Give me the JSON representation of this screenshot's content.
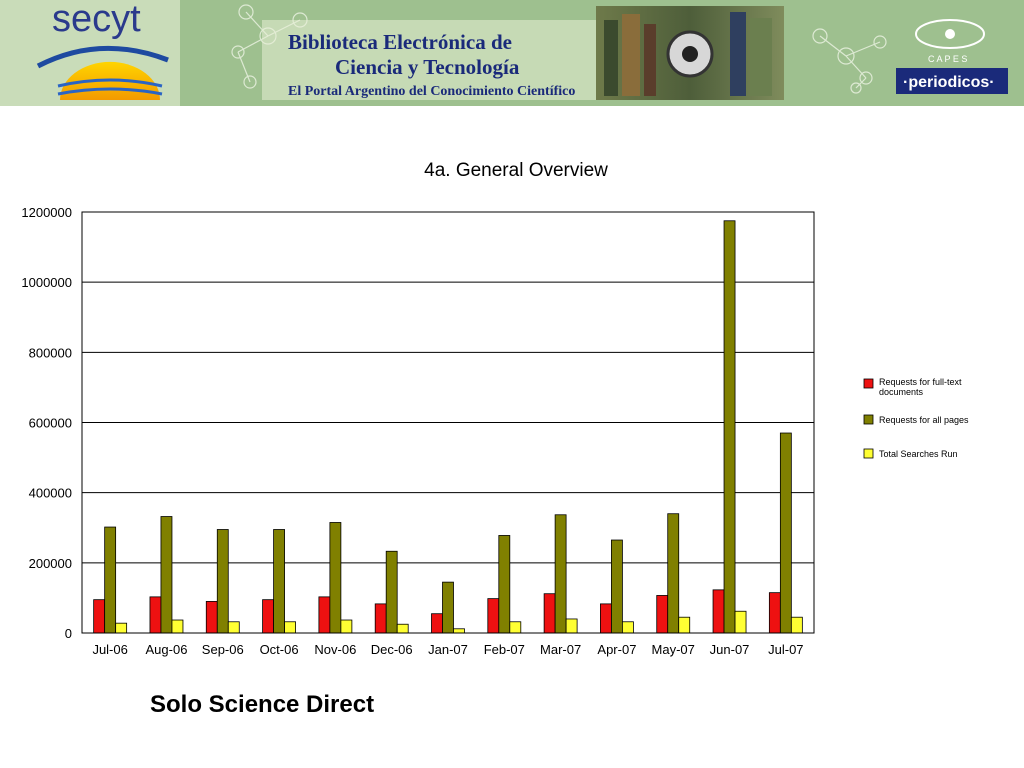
{
  "banner": {
    "logo_text": "secyt",
    "title_line1": "Biblioteca Electrónica de",
    "title_line2": "Ciencia y Tecnología",
    "subtitle": "El Portal Argentino del Conocimiento Científico",
    "capes_label": "C A P E S",
    "periodicos_label": "·periodicos·"
  },
  "caption": "Solo Science Direct",
  "colors": {
    "fulltext": "#ee1111",
    "allpages": "#808000",
    "searches": "#ffff33",
    "banner_bg": "#9ec08f"
  },
  "chart_data": {
    "type": "bar",
    "title": "4a. General Overview",
    "xlabel": "",
    "ylabel": "",
    "categories": [
      "Jul-06",
      "Aug-06",
      "Sep-06",
      "Oct-06",
      "Nov-06",
      "Dec-06",
      "Jan-07",
      "Feb-07",
      "Mar-07",
      "Apr-07",
      "May-07",
      "Jun-07",
      "Jul-07"
    ],
    "ylim": [
      0,
      1200000
    ],
    "yticks": [
      "0",
      "200000",
      "400000",
      "600000",
      "800000",
      "1000000",
      "1200000"
    ],
    "grid": true,
    "legend_position": "right",
    "series": [
      {
        "name": "Requests for full-text documents",
        "color": "#ee1111",
        "values": [
          95000,
          103000,
          90000,
          95000,
          103000,
          83000,
          55000,
          98000,
          112000,
          83000,
          107000,
          123000,
          115000
        ]
      },
      {
        "name": "Requests for all pages",
        "color": "#808000",
        "values": [
          302000,
          332000,
          295000,
          295000,
          315000,
          233000,
          145000,
          278000,
          337000,
          265000,
          340000,
          1175000,
          570000
        ]
      },
      {
        "name": "Total Searches Run",
        "color": "#ffff33",
        "values": [
          28000,
          37000,
          32000,
          32000,
          37000,
          25000,
          12000,
          32000,
          40000,
          32000,
          45000,
          62000,
          45000
        ]
      }
    ]
  }
}
